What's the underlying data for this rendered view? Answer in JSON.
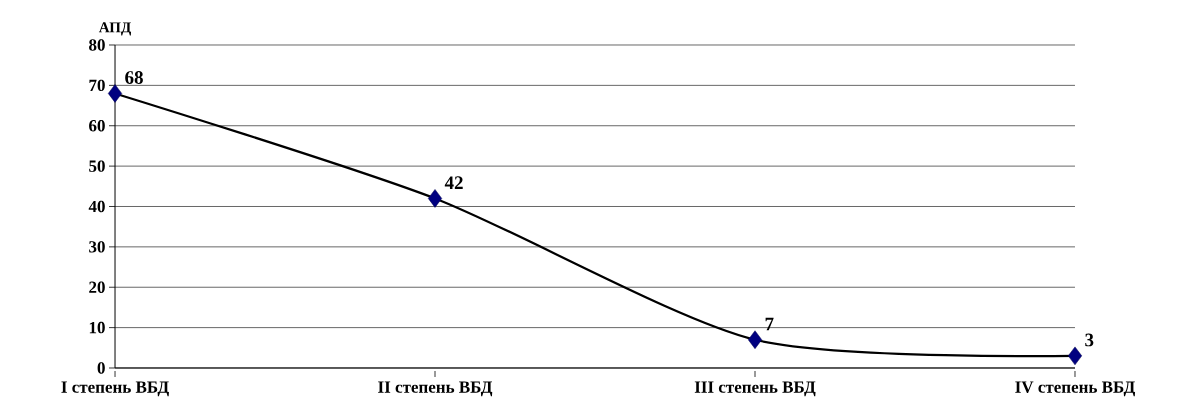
{
  "chart_data": {
    "type": "line",
    "ylabel": "АПД",
    "categories": [
      "I степень ВБД",
      "II степень ВБД",
      "III степень ВБД",
      "IV степень ВБД"
    ],
    "series": [
      {
        "color": "#000000",
        "values": [
          68,
          42,
          7,
          3
        ]
      }
    ],
    "ylim": [
      0,
      80
    ],
    "yticks": [
      0,
      10,
      20,
      30,
      40,
      50,
      60,
      70,
      80
    ],
    "grid": "y",
    "marker": "diamond",
    "data_labels": true,
    "line_style": "solid"
  }
}
